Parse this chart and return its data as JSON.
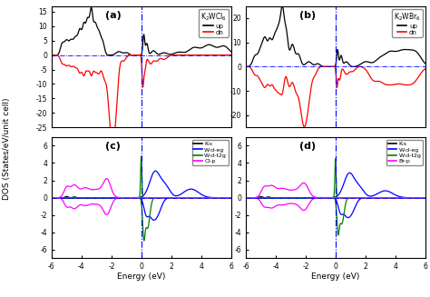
{
  "fig_width": 4.74,
  "fig_height": 3.27,
  "dpi": 100,
  "panel_a": {
    "label": "(a)",
    "title": "K$_2$WCl$_6$",
    "ylim": [
      -25,
      17
    ],
    "yticks": [
      -25,
      -20,
      -15,
      -10,
      -5,
      0,
      5,
      10,
      15
    ],
    "xlim": [
      -6,
      6
    ],
    "up_color": "black",
    "dn_color": "red",
    "legend_labels": [
      "up",
      "dn"
    ]
  },
  "panel_b": {
    "label": "(b)",
    "title": "K$_2$WBr$_6$",
    "ylim": [
      -25,
      25
    ],
    "yticks": [
      -20,
      -10,
      0,
      10,
      20
    ],
    "xlim": [
      -6,
      6
    ],
    "up_color": "black",
    "dn_color": "red",
    "legend_labels": [
      "up",
      "dn"
    ]
  },
  "panel_c": {
    "label": "(c)",
    "ylim": [
      -7,
      7
    ],
    "yticks": [
      -6,
      -4,
      -2,
      0,
      2,
      4,
      6
    ],
    "xlim": [
      -6,
      6
    ],
    "xticks": [
      -6,
      -4,
      -2,
      0,
      2,
      4,
      6
    ],
    "colors": {
      "Ks": "black",
      "Wdeg": "blue",
      "Wdt2g": "green",
      "Clp": "magenta"
    },
    "legend_labels": [
      "K-s",
      "W-d-eg",
      "W-d-t2g",
      "Cl-p"
    ]
  },
  "panel_d": {
    "label": "(d)",
    "ylim": [
      -7,
      7
    ],
    "yticks": [
      -6,
      -4,
      -2,
      0,
      2,
      4,
      6
    ],
    "xlim": [
      -6,
      6
    ],
    "xticks": [
      -6,
      -4,
      -2,
      0,
      2,
      4,
      6
    ],
    "colors": {
      "Ks": "black",
      "Wdeg": "blue",
      "Wdt2g": "green",
      "Brp": "magenta"
    },
    "legend_labels": [
      "K-s",
      "W-d-eg",
      "W-d-t2g",
      "Br-p"
    ]
  },
  "ylabel": "DOS (States/eV/unit cell)",
  "xlabel": "Energy (eV)",
  "background": "white"
}
